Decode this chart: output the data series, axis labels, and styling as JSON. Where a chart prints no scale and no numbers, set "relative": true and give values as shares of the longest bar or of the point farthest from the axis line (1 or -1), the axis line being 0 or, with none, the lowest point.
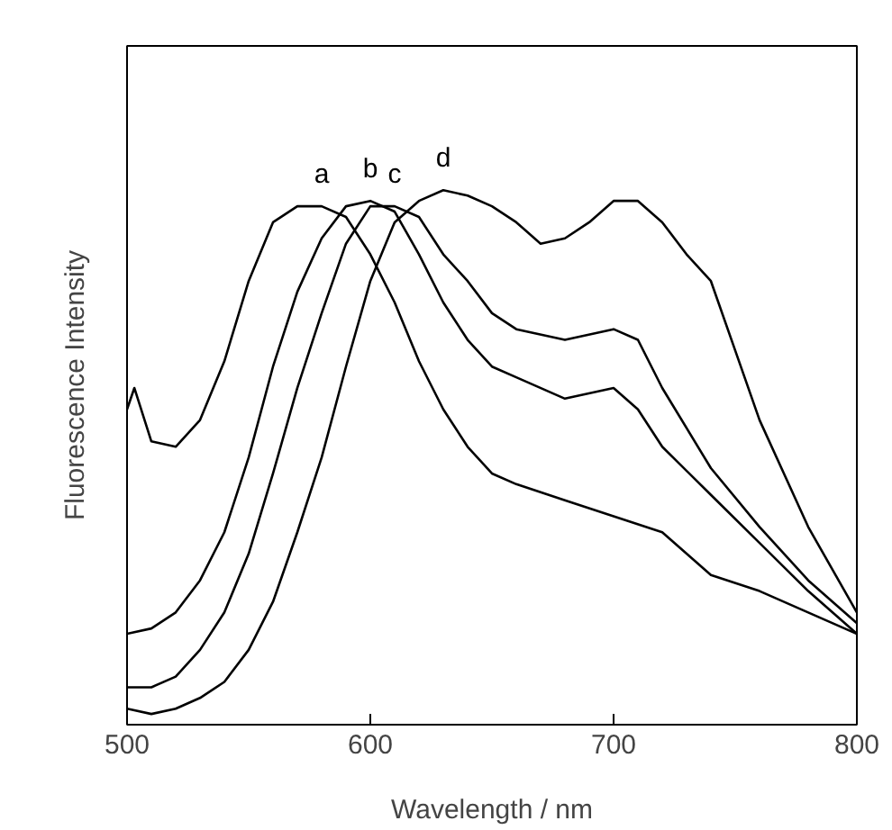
{
  "chart_data": {
    "type": "line",
    "relative": true,
    "xlabel": "Wavelength / nm",
    "ylabel": "Fluorescence Intensity",
    "xlim": [
      500,
      800
    ],
    "xticks": [
      500,
      600,
      700,
      800
    ],
    "grid": false,
    "legend": false,
    "tick_labels": "x",
    "marker": "none",
    "line_style": "solid",
    "series": [
      {
        "name": "a",
        "color": "#000000",
        "x": [
          500,
          503,
          510,
          520,
          530,
          540,
          550,
          560,
          570,
          580,
          590,
          600,
          610,
          620,
          630,
          640,
          650,
          660,
          680,
          700,
          720,
          730,
          740,
          760,
          780,
          800
        ],
        "values": [
          0.59,
          0.63,
          0.53,
          0.52,
          0.57,
          0.68,
          0.83,
          0.94,
          0.97,
          0.97,
          0.95,
          0.88,
          0.79,
          0.68,
          0.59,
          0.52,
          0.47,
          0.45,
          0.42,
          0.39,
          0.36,
          0.32,
          0.28,
          0.25,
          0.21,
          0.17
        ]
      },
      {
        "name": "b",
        "color": "#000000",
        "x": [
          500,
          510,
          520,
          530,
          540,
          550,
          560,
          570,
          580,
          590,
          600,
          610,
          620,
          630,
          640,
          650,
          660,
          680,
          700,
          710,
          720,
          740,
          760,
          780,
          800
        ],
        "values": [
          0.17,
          0.18,
          0.21,
          0.27,
          0.36,
          0.5,
          0.67,
          0.81,
          0.91,
          0.97,
          0.98,
          0.96,
          0.88,
          0.79,
          0.72,
          0.67,
          0.65,
          0.61,
          0.63,
          0.59,
          0.52,
          0.43,
          0.34,
          0.25,
          0.17
        ]
      },
      {
        "name": "c",
        "color": "#000000",
        "x": [
          500,
          510,
          520,
          530,
          540,
          550,
          560,
          570,
          580,
          590,
          600,
          610,
          620,
          630,
          640,
          650,
          660,
          680,
          700,
          710,
          720,
          740,
          760,
          780,
          800
        ],
        "values": [
          0.07,
          0.07,
          0.09,
          0.14,
          0.21,
          0.32,
          0.47,
          0.63,
          0.77,
          0.9,
          0.97,
          0.97,
          0.95,
          0.88,
          0.83,
          0.77,
          0.74,
          0.72,
          0.74,
          0.72,
          0.63,
          0.48,
          0.37,
          0.27,
          0.19
        ]
      },
      {
        "name": "d",
        "color": "#000000",
        "x": [
          500,
          510,
          520,
          530,
          540,
          550,
          560,
          570,
          580,
          590,
          600,
          610,
          620,
          630,
          640,
          650,
          660,
          670,
          680,
          690,
          700,
          710,
          720,
          730,
          740,
          750,
          760,
          780,
          800
        ],
        "values": [
          0.03,
          0.02,
          0.03,
          0.05,
          0.08,
          0.14,
          0.23,
          0.36,
          0.5,
          0.67,
          0.83,
          0.94,
          0.98,
          1,
          0.99,
          0.97,
          0.94,
          0.9,
          0.91,
          0.94,
          0.98,
          0.98,
          0.94,
          0.88,
          0.83,
          0.7,
          0.57,
          0.37,
          0.21
        ]
      }
    ]
  }
}
